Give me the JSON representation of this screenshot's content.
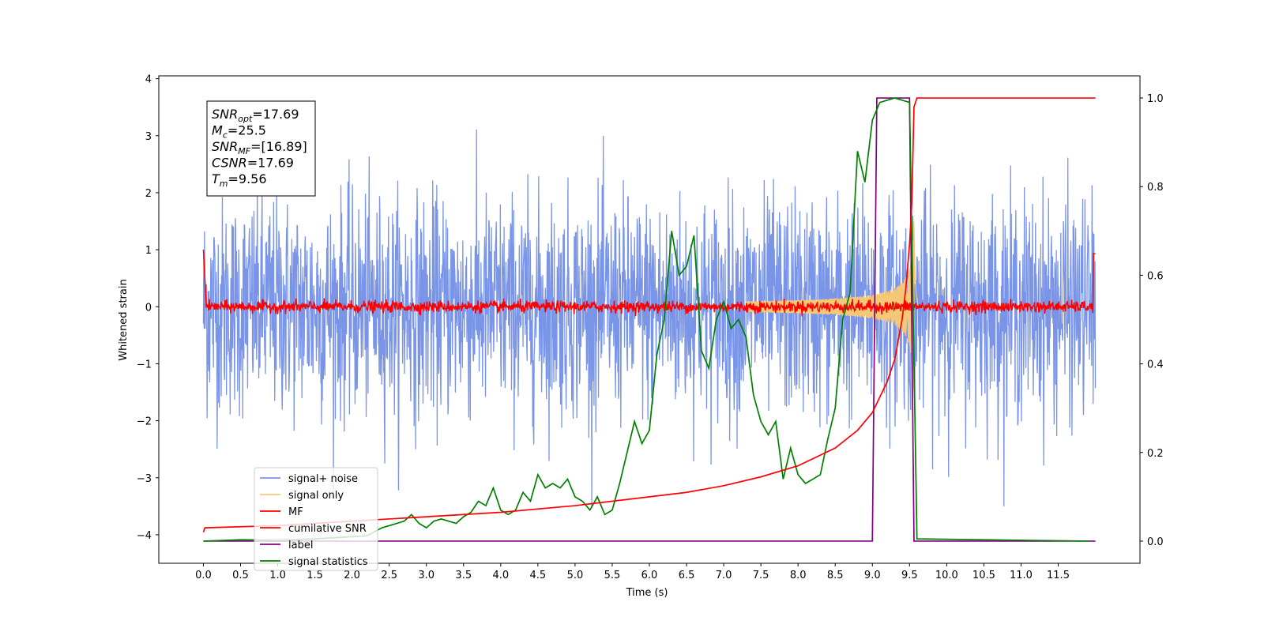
{
  "chart_data": {
    "type": "line",
    "title": "",
    "xlabel": "Time (s)",
    "ylabel": "Whitened strain",
    "xlim": [
      -0.6,
      12.6
    ],
    "ylim": [
      -4.5,
      4.05
    ],
    "y2lim": [
      -0.05,
      1.05
    ],
    "xticks": [
      "0.0",
      "0.5",
      "1.0",
      "1.5",
      "2.0",
      "2.5",
      "3.0",
      "3.5",
      "4.0",
      "4.5",
      "5.0",
      "5.5",
      "6.0",
      "6.5",
      "7.0",
      "7.5",
      "8.0",
      "8.5",
      "9.0",
      "9.5",
      "10.0",
      "10.5",
      "11.0",
      "11.5"
    ],
    "yticks_left": [
      "−4",
      "−3",
      "−2",
      "−1",
      "0",
      "1",
      "2",
      "3",
      "4"
    ],
    "yticks_right": [
      "0.0",
      "0.2",
      "0.4",
      "0.6",
      "0.8",
      "1.0"
    ],
    "grid": false,
    "legend_position": "lower-left",
    "legend": [
      "signal+ noise",
      "signal only",
      "MF",
      "cumilative SNR",
      "label",
      "signal statistics"
    ],
    "annotation": {
      "lines": [
        {
          "sym": "SNR",
          "sub": "opt",
          "val": "=17.69"
        },
        {
          "sym": "M",
          "sub": "c",
          "val": "=25.5"
        },
        {
          "sym": "SNR",
          "sub": "MF",
          "val": "=[16.89]"
        },
        {
          "sym": "CSNR",
          "sub": "",
          "val": "=17.69"
        },
        {
          "sym": "T",
          "sub": "m",
          "val": "=9.56"
        }
      ]
    },
    "series": [
      {
        "name": "signal+ noise",
        "axis": "left",
        "color": "#7a95e8",
        "style": "noise",
        "x_range": [
          0.0,
          12.0
        ],
        "amplitude_sigma": 1.0,
        "approx_max": 3.2,
        "approx_min": -3.5
      },
      {
        "name": "signal only",
        "axis": "left",
        "color": "#f5c878",
        "style": "chirp",
        "peak_time": 9.56,
        "peak_amplitude": 1.6
      },
      {
        "name": "MF",
        "axis": "left",
        "color": "#ff0000",
        "style": "mf",
        "x_range": [
          0.0,
          12.0
        ],
        "start_value": 1.0,
        "end_value": 0.93,
        "noise_sigma": 0.05
      },
      {
        "name": "cumilative SNR",
        "axis": "right",
        "color": "#ff0000",
        "style": "line",
        "points": [
          [
            0.0,
            0.02
          ],
          [
            0.02,
            0.03
          ],
          [
            1.0,
            0.035
          ],
          [
            2.0,
            0.045
          ],
          [
            3.0,
            0.055
          ],
          [
            4.0,
            0.065
          ],
          [
            5.0,
            0.08
          ],
          [
            6.0,
            0.1
          ],
          [
            6.5,
            0.11
          ],
          [
            7.0,
            0.125
          ],
          [
            7.5,
            0.145
          ],
          [
            8.0,
            0.17
          ],
          [
            8.5,
            0.21
          ],
          [
            8.8,
            0.25
          ],
          [
            9.0,
            0.29
          ],
          [
            9.2,
            0.36
          ],
          [
            9.3,
            0.41
          ],
          [
            9.4,
            0.5
          ],
          [
            9.45,
            0.57
          ],
          [
            9.5,
            0.67
          ],
          [
            9.53,
            0.76
          ],
          [
            9.56,
            0.98
          ],
          [
            9.6,
            1.0
          ],
          [
            12.0,
            1.0
          ]
        ]
      },
      {
        "name": "label",
        "axis": "right",
        "color": "#800080",
        "style": "line",
        "points": [
          [
            0.0,
            0.0
          ],
          [
            9.0,
            0.0
          ],
          [
            9.06,
            1.0
          ],
          [
            9.5,
            1.0
          ],
          [
            9.56,
            0.0
          ],
          [
            12.0,
            0.0
          ]
        ]
      },
      {
        "name": "signal statistics",
        "axis": "right",
        "color": "#008000",
        "style": "line",
        "points": [
          [
            0.0,
            0.0
          ],
          [
            0.5,
            0.003
          ],
          [
            1.0,
            0.002
          ],
          [
            1.5,
            0.005
          ],
          [
            2.0,
            0.01
          ],
          [
            2.2,
            0.012
          ],
          [
            2.4,
            0.03
          ],
          [
            2.6,
            0.04
          ],
          [
            2.7,
            0.045
          ],
          [
            2.8,
            0.06
          ],
          [
            2.9,
            0.04
          ],
          [
            3.0,
            0.03
          ],
          [
            3.1,
            0.045
          ],
          [
            3.2,
            0.05
          ],
          [
            3.3,
            0.045
          ],
          [
            3.4,
            0.04
          ],
          [
            3.5,
            0.055
          ],
          [
            3.6,
            0.065
          ],
          [
            3.7,
            0.09
          ],
          [
            3.8,
            0.08
          ],
          [
            3.9,
            0.12
          ],
          [
            4.0,
            0.07
          ],
          [
            4.1,
            0.06
          ],
          [
            4.2,
            0.07
          ],
          [
            4.3,
            0.11
          ],
          [
            4.4,
            0.09
          ],
          [
            4.5,
            0.15
          ],
          [
            4.6,
            0.12
          ],
          [
            4.7,
            0.13
          ],
          [
            4.8,
            0.12
          ],
          [
            4.9,
            0.14
          ],
          [
            5.0,
            0.1
          ],
          [
            5.1,
            0.09
          ],
          [
            5.2,
            0.07
          ],
          [
            5.3,
            0.1
          ],
          [
            5.4,
            0.06
          ],
          [
            5.5,
            0.07
          ],
          [
            5.6,
            0.13
          ],
          [
            5.7,
            0.2
          ],
          [
            5.8,
            0.27
          ],
          [
            5.9,
            0.22
          ],
          [
            6.0,
            0.25
          ],
          [
            6.1,
            0.42
          ],
          [
            6.2,
            0.5
          ],
          [
            6.3,
            0.7
          ],
          [
            6.4,
            0.6
          ],
          [
            6.5,
            0.62
          ],
          [
            6.6,
            0.69
          ],
          [
            6.7,
            0.43
          ],
          [
            6.8,
            0.39
          ],
          [
            6.9,
            0.5
          ],
          [
            7.0,
            0.54
          ],
          [
            7.1,
            0.48
          ],
          [
            7.2,
            0.5
          ],
          [
            7.3,
            0.46
          ],
          [
            7.4,
            0.33
          ],
          [
            7.5,
            0.27
          ],
          [
            7.6,
            0.24
          ],
          [
            7.7,
            0.27
          ],
          [
            7.8,
            0.14
          ],
          [
            7.9,
            0.21
          ],
          [
            8.0,
            0.15
          ],
          [
            8.1,
            0.13
          ],
          [
            8.2,
            0.14
          ],
          [
            8.3,
            0.15
          ],
          [
            8.4,
            0.23
          ],
          [
            8.5,
            0.3
          ],
          [
            8.6,
            0.5
          ],
          [
            8.7,
            0.56
          ],
          [
            8.8,
            0.88
          ],
          [
            8.9,
            0.81
          ],
          [
            9.0,
            0.95
          ],
          [
            9.1,
            0.99
          ],
          [
            9.3,
            1.0
          ],
          [
            9.4,
            0.995
          ],
          [
            9.5,
            0.99
          ],
          [
            9.55,
            0.5
          ],
          [
            9.6,
            0.005
          ],
          [
            11.9,
            0.0
          ]
        ]
      }
    ]
  }
}
